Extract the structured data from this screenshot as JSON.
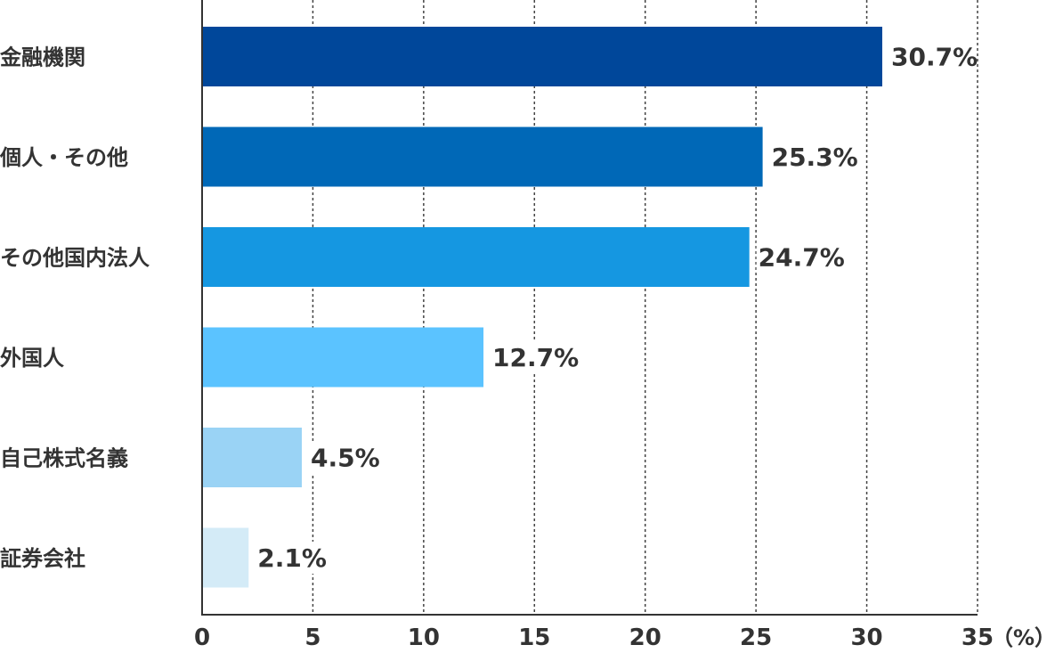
{
  "chart_data": {
    "type": "bar",
    "orientation": "horizontal",
    "categories": [
      "金融機関",
      "個人・その他",
      "その他国内法人",
      "外国人",
      "自己株式名義",
      "証券会社"
    ],
    "values": [
      30.7,
      25.3,
      24.7,
      12.7,
      4.5,
      2.1
    ],
    "value_labels": [
      "30.7%",
      "25.3%",
      "24.7%",
      "12.7%",
      "4.5%",
      "2.1%"
    ],
    "colors": [
      "#00479a",
      "#0068b7",
      "#1597e1",
      "#5bc3ff",
      "#9ad3f5",
      "#d4ebf7"
    ],
    "xlim": [
      0,
      35
    ],
    "xticks": [
      0,
      5,
      10,
      15,
      20,
      25,
      30,
      35
    ],
    "xlabel": "（%）",
    "grid": "vertical-dashed"
  }
}
